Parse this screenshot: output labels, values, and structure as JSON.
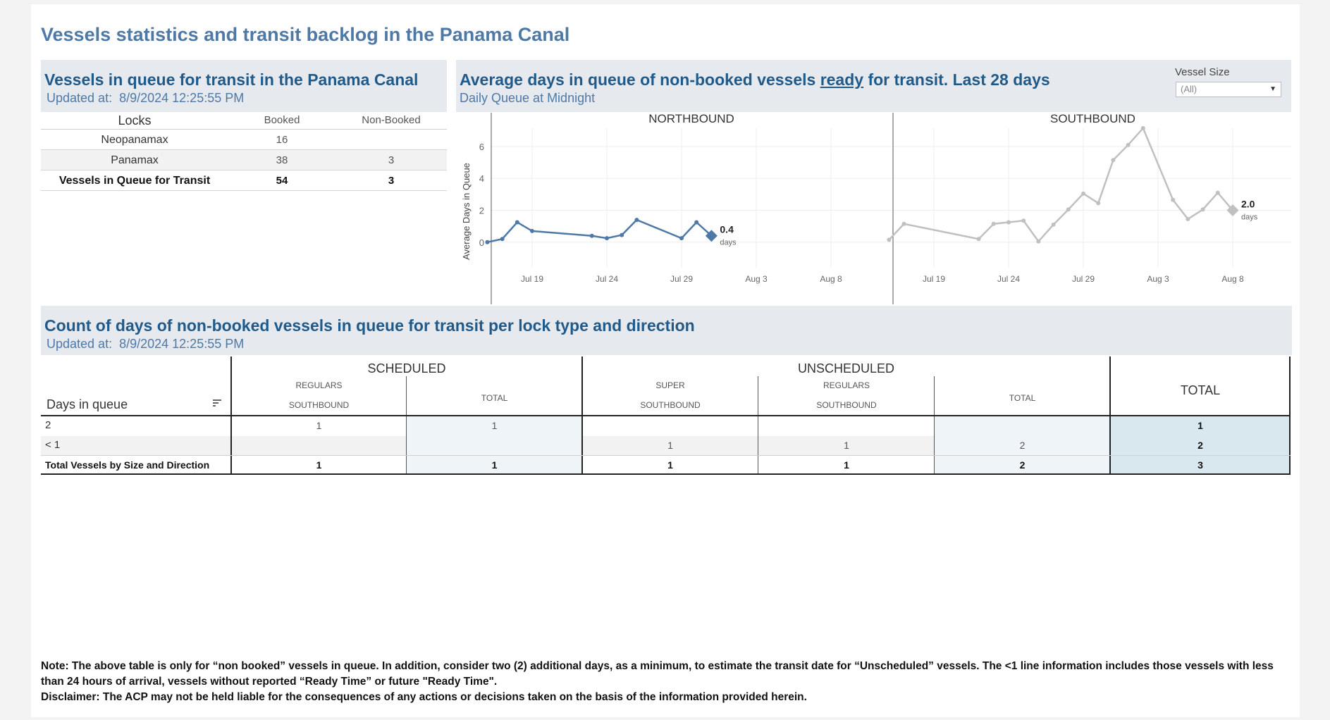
{
  "page_title": "Vessels statistics and transit backlog in the Panama Canal",
  "queue_panel": {
    "title": "Vessels in queue for transit in the Panama Canal",
    "updated_label": "Updated at:",
    "updated_value": "8/9/2024 12:25:55 PM",
    "headers": [
      "Locks",
      "Booked",
      "Non-Booked"
    ],
    "rows": [
      {
        "lock": "Neopanamax",
        "booked": "16",
        "non_booked": ""
      },
      {
        "lock": "Panamax",
        "booked": "38",
        "non_booked": "3"
      },
      {
        "lock": "Vessels in Queue for Transit",
        "booked": "54",
        "non_booked": "3"
      }
    ]
  },
  "days_panel": {
    "title_pre": "Average days in queue of non-booked vessels ",
    "title_link": "ready",
    "title_post": " for transit. Last 28 days",
    "subtitle": "Daily Queue at Midnight",
    "filter_label": "Vessel Size",
    "filter_value": "(All)"
  },
  "chart_data": [
    {
      "type": "line",
      "title": "NORTHBOUND",
      "ylabel": "Average Days in Queue",
      "x_ticks": [
        "Jul 19",
        "Jul 24",
        "Jul 29",
        "Aug 3",
        "Aug 8"
      ],
      "y_ticks": [
        "0",
        "2",
        "4",
        "6"
      ],
      "ylim": [
        -1.6,
        7.5
      ],
      "grid": true,
      "series": [
        {
          "color": "#4e79a7",
          "points": [
            {
              "x": "Jul 16",
              "y": 0.0
            },
            {
              "x": "Jul 17",
              "y": 0.2
            },
            {
              "x": "Jul 18",
              "y": 1.25
            },
            {
              "x": "Jul 19",
              "y": 0.7
            },
            {
              "x": "Jul 23",
              "y": 0.4
            },
            {
              "x": "Jul 24",
              "y": 0.25
            },
            {
              "x": "Jul 25",
              "y": 0.45
            },
            {
              "x": "Jul 26",
              "y": 1.4
            },
            {
              "x": "Jul 29",
              "y": 0.25
            },
            {
              "x": "Jul 30",
              "y": 1.25
            },
            {
              "x": "Jul 31",
              "y": 0.4
            }
          ]
        }
      ],
      "last_value_label": "0.4",
      "last_value_unit": "days"
    },
    {
      "type": "line",
      "title": "SOUTHBOUND",
      "x_ticks": [
        "Jul 19",
        "Jul 24",
        "Jul 29",
        "Aug 3",
        "Aug 8"
      ],
      "ylim": [
        -1.6,
        7.5
      ],
      "grid": true,
      "series": [
        {
          "color": "#c0c0c0",
          "points": [
            {
              "x": "Jul 16",
              "y": 0.15
            },
            {
              "x": "Jul 17",
              "y": 1.15
            },
            {
              "x": "Jul 22",
              "y": 0.2
            },
            {
              "x": "Jul 23",
              "y": 1.15
            },
            {
              "x": "Jul 24",
              "y": 1.25
            },
            {
              "x": "Jul 25",
              "y": 1.35
            },
            {
              "x": "Jul 26",
              "y": 0.05
            },
            {
              "x": "Jul 27",
              "y": 1.1
            },
            {
              "x": "Jul 28",
              "y": 2.05
            },
            {
              "x": "Jul 29",
              "y": 3.05
            },
            {
              "x": "Jul 30",
              "y": 2.45
            },
            {
              "x": "Jul 31",
              "y": 5.15
            },
            {
              "x": "Aug 1",
              "y": 6.1
            },
            {
              "x": "Aug 2",
              "y": 7.15
            },
            {
              "x": "Aug 4",
              "y": 2.65
            },
            {
              "x": "Aug 5",
              "y": 1.45
            },
            {
              "x": "Aug 6",
              "y": 2.05
            },
            {
              "x": "Aug 7",
              "y": 3.1
            },
            {
              "x": "Aug 8",
              "y": 2.0
            }
          ]
        }
      ],
      "last_value_label": "2.0",
      "last_value_unit": "days"
    }
  ],
  "count_panel": {
    "title": "Count of days of non-booked vessels in queue for transit per lock type and direction",
    "updated_label": "Updated at:",
    "updated_value": "8/9/2024 12:25:55 PM",
    "row_header": "Days in queue",
    "groups": {
      "scheduled": "SCHEDULED",
      "unscheduled": "UNSCHEDULED",
      "total": "TOTAL"
    },
    "columns": [
      {
        "size": "REGULARS",
        "direction": "SOUTHBOUND"
      },
      {
        "size": "TOTAL",
        "direction": ""
      },
      {
        "size": "SUPER",
        "direction": "SOUTHBOUND"
      },
      {
        "size": "REGULARS",
        "direction": "SOUTHBOUND"
      },
      {
        "size": "TOTAL",
        "direction": ""
      }
    ],
    "rows": [
      {
        "label": "2",
        "values": [
          "1",
          "1",
          "",
          "",
          "",
          "1"
        ]
      },
      {
        "label": "< 1",
        "values": [
          "",
          "",
          "1",
          "1",
          "2",
          "2"
        ]
      },
      {
        "label": "Total Vessels by Size and Direction",
        "values": [
          "1",
          "1",
          "1",
          "1",
          "2",
          "3"
        ]
      }
    ]
  },
  "note": "Note:  The above table is only for “non booked” vessels in queue. In addition, consider two (2) additional days, as a minimum, to estimate the transit date for “Unscheduled” vessels.  The <1 line information includes those vessels with less than 24 hours of arrival, vessels without reported “Ready Time” or future \"Ready Time\".",
  "disclaimer": "Disclaimer: The ACP may not be held liable for the consequences of any actions or decisions taken on the basis of the information provided herein."
}
